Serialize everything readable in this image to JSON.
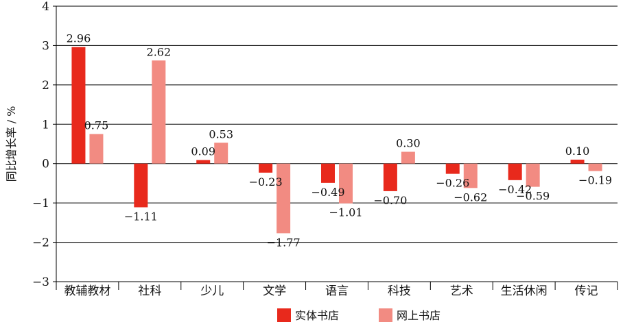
{
  "chart_data": {
    "type": "bar",
    "title": "",
    "xlabel": "",
    "ylabel": "同比增长率 / %",
    "ylim": [
      -3,
      4
    ],
    "yticks": [
      4,
      3,
      2,
      1,
      0,
      -1,
      -2,
      -3
    ],
    "grid": true,
    "legend_position": "bottom",
    "categories": [
      "教辅教材",
      "社科",
      "少儿",
      "文学",
      "语言",
      "科技",
      "艺术",
      "生活休闲",
      "传记"
    ],
    "series": [
      {
        "name": "实体书店",
        "color": "#e8291c",
        "values": [
          2.96,
          -1.11,
          0.09,
          -0.23,
          -0.49,
          -0.7,
          -0.26,
          -0.42,
          0.1
        ],
        "labels": [
          "2.96",
          "−1.11",
          "0.09",
          "−0.23",
          "−0.49",
          "−0.70",
          "−0.26",
          "−0.42",
          "0.10"
        ]
      },
      {
        "name": "网上书店",
        "color": "#f28b82",
        "values": [
          0.75,
          2.62,
          0.53,
          -1.77,
          -1.01,
          0.3,
          -0.62,
          -0.59,
          -0.19
        ],
        "labels": [
          "0.75",
          "2.62",
          "0.53",
          "−1.77",
          "−1.01",
          "0.30",
          "−0.62",
          "−0.59",
          "−0.19"
        ]
      }
    ]
  }
}
